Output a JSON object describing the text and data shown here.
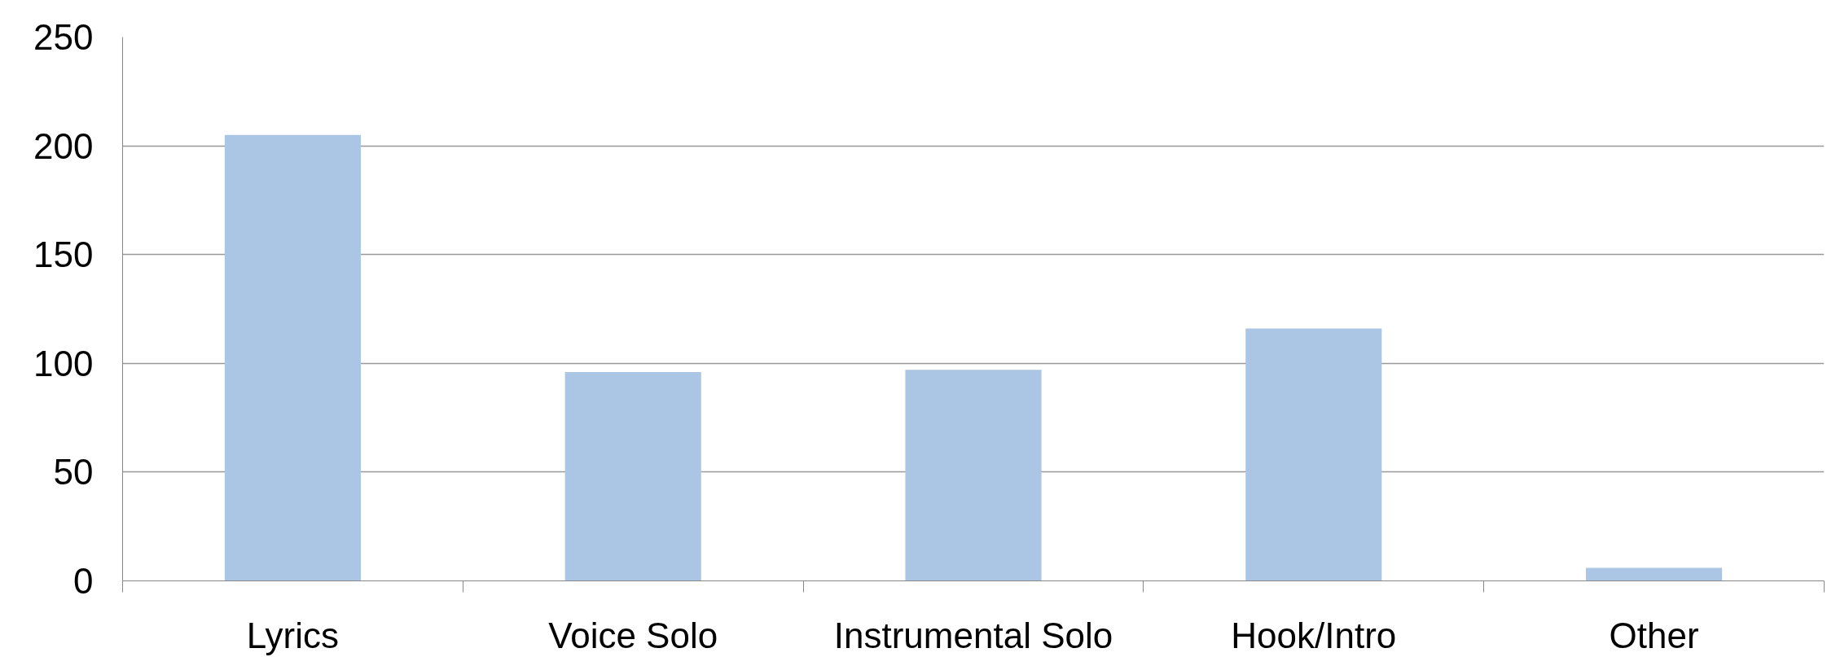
{
  "chart_data": {
    "type": "bar",
    "categories": [
      "Lyrics",
      "Voice Solo",
      "Instrumental Solo",
      "Hook/Intro",
      "Other"
    ],
    "values": [
      205,
      96,
      97,
      116,
      6
    ],
    "color": "#aac6e4",
    "ylim": [
      0,
      250
    ],
    "yticks": [
      0,
      50,
      100,
      150,
      200,
      250
    ],
    "grid": "y"
  }
}
